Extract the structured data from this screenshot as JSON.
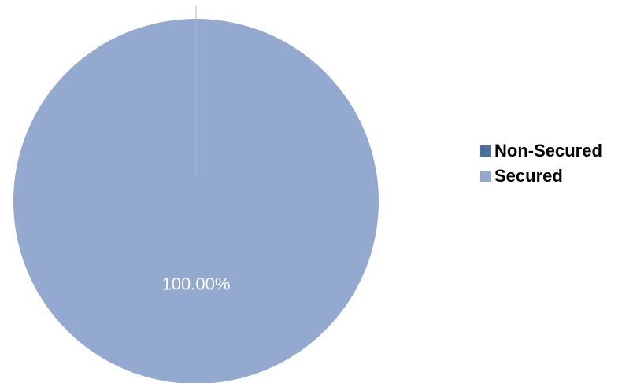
{
  "chart_data": {
    "type": "pie",
    "categories": [
      "Non-Secured",
      "Secured"
    ],
    "values": [
      0.0,
      100.0
    ],
    "data_labels": [
      "",
      "100.00%"
    ],
    "colors": [
      "#4a6fa5",
      "#94a9d0"
    ],
    "legend_position": "right"
  },
  "legend": {
    "items": [
      {
        "label": "Non-Secured",
        "color": "#4a6fa5"
      },
      {
        "label": "Secured",
        "color": "#94a9d0"
      }
    ]
  }
}
